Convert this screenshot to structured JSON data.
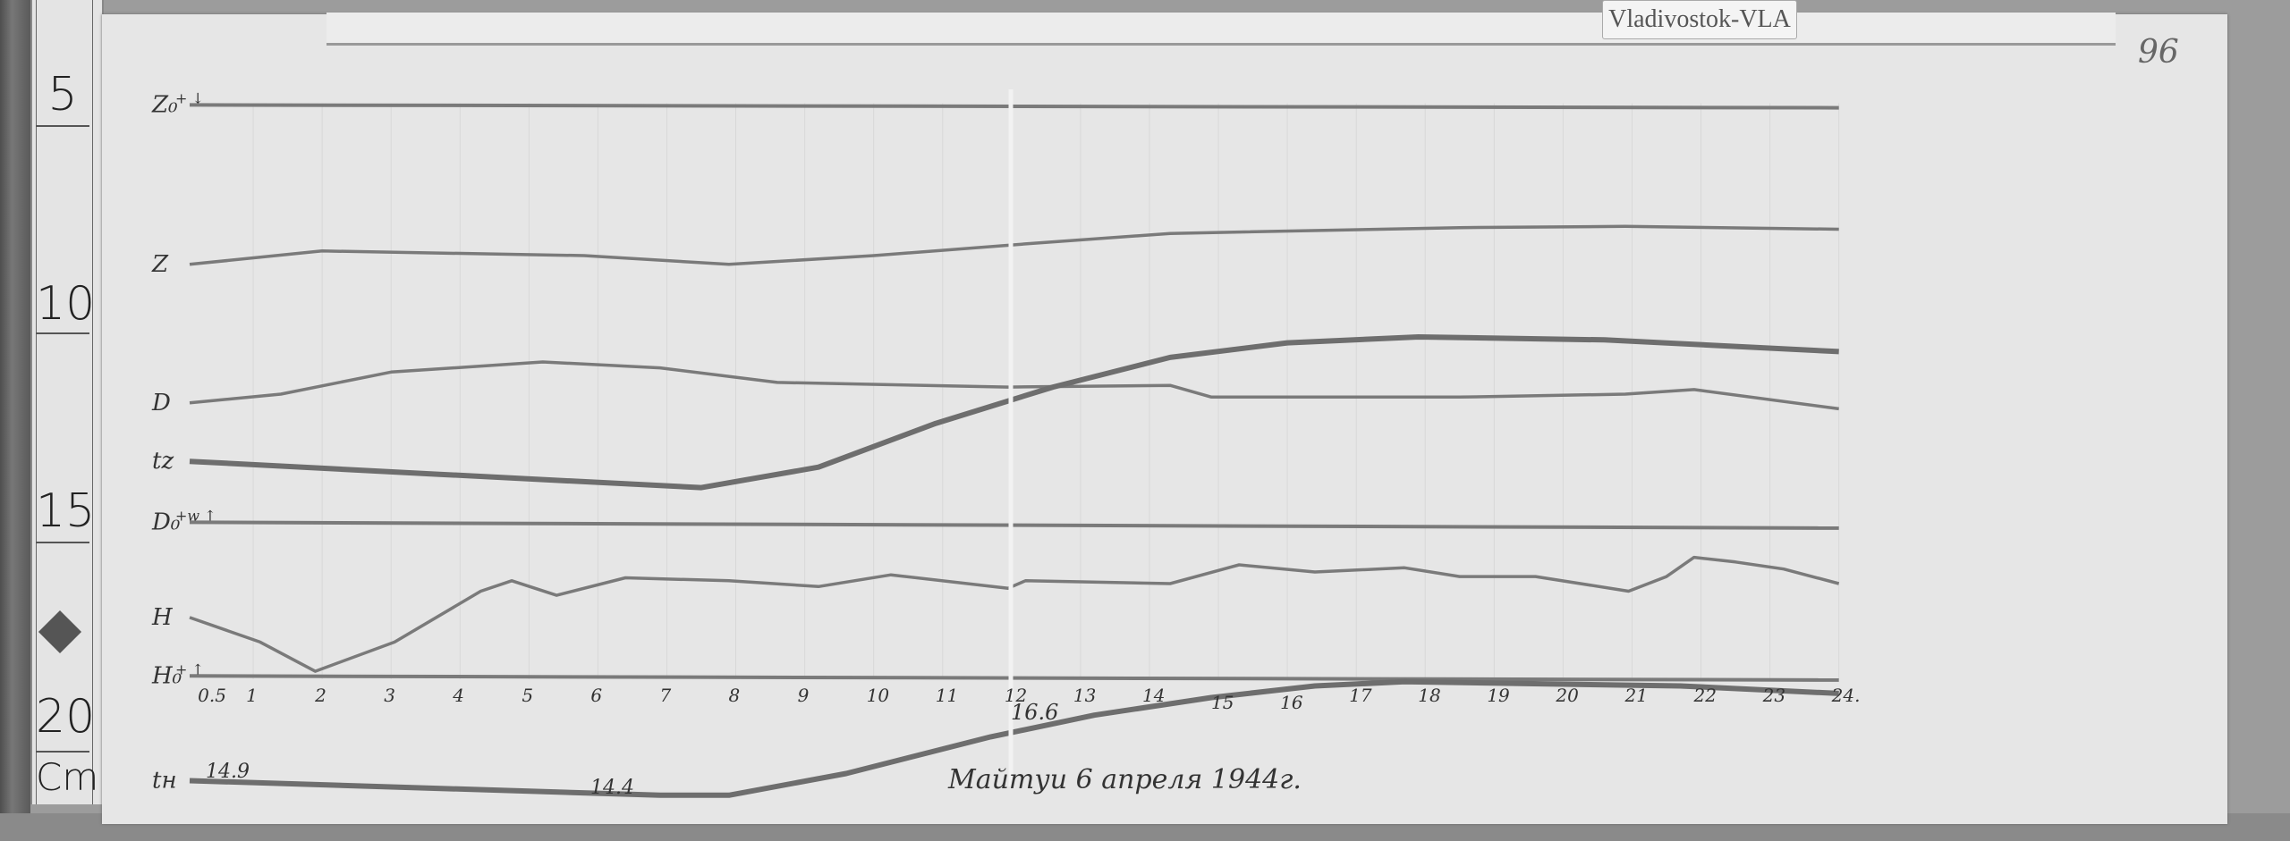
{
  "tag_label": "Vladivostok-VLA",
  "page_number": "96",
  "ruler": {
    "marks": [
      "5",
      "10",
      "15",
      "20"
    ],
    "unit": "Cm"
  },
  "caption": "Майтуи 6 апреля 1944г.",
  "colors": {
    "paper": "#e6e6e6",
    "trace": "#777777",
    "ink": "#333333"
  },
  "chart_data": {
    "type": "line",
    "title": "",
    "xlabel": "",
    "ylabel": "",
    "x_unit_note": "hours",
    "y_scale": "ruler Cm",
    "xlim": [
      0,
      24
    ],
    "ylim": [
      4,
      23
    ],
    "grid": true,
    "x_tick_labels": [
      "0.5",
      "1",
      "2",
      "3",
      "4",
      "5",
      "6",
      "7",
      "8",
      "9",
      "10",
      "11",
      "12",
      "13",
      "14",
      "15",
      "16",
      "17",
      "18",
      "19",
      "20",
      "21",
      "22",
      "23",
      "24."
    ],
    "series": [
      {
        "name": "Z₀",
        "label_extra": "+ ↓",
        "baseline": true,
        "points": [
          [
            0.1,
            5.24
          ],
          [
            24,
            5.31
          ]
        ]
      },
      {
        "name": "Z",
        "points": [
          [
            0.1,
            9.06
          ],
          [
            2.0,
            8.74
          ],
          [
            5.8,
            8.85
          ],
          [
            7.9,
            9.06
          ],
          [
            10.0,
            8.85
          ],
          [
            12.2,
            8.57
          ],
          [
            14.3,
            8.32
          ],
          [
            18.5,
            8.18
          ],
          [
            20.9,
            8.15
          ],
          [
            24,
            8.22
          ]
        ]
      },
      {
        "name": "D",
        "points": [
          [
            0.1,
            12.38
          ],
          [
            1.4,
            12.17
          ],
          [
            3.0,
            11.64
          ],
          [
            5.2,
            11.4
          ],
          [
            6.9,
            11.54
          ],
          [
            8.6,
            11.89
          ],
          [
            11.95,
            12.0
          ],
          [
            14.3,
            11.96
          ],
          [
            14.9,
            12.24
          ],
          [
            18.5,
            12.24
          ],
          [
            20.9,
            12.17
          ],
          [
            21.9,
            12.06
          ],
          [
            24,
            12.52
          ]
        ]
      },
      {
        "name": "tz",
        "thick": true,
        "points": [
          [
            0.1,
            13.78
          ],
          [
            3.7,
            14.09
          ],
          [
            7.5,
            14.41
          ],
          [
            9.2,
            13.92
          ],
          [
            10.9,
            12.87
          ],
          [
            12.6,
            12.0
          ],
          [
            14.3,
            11.29
          ],
          [
            16.0,
            10.94
          ],
          [
            17.9,
            10.8
          ],
          [
            20.6,
            10.87
          ],
          [
            24,
            11.15
          ]
        ]
      },
      {
        "name": "D₀",
        "label_extra": "+w ↑",
        "baseline": true,
        "points": [
          [
            0.1,
            15.24
          ],
          [
            24,
            15.38
          ]
        ]
      },
      {
        "name": "H",
        "points": [
          [
            0.1,
            17.52
          ],
          [
            1.1,
            18.11
          ],
          [
            1.9,
            18.81
          ],
          [
            3.05,
            18.11
          ],
          [
            4.3,
            16.89
          ],
          [
            4.75,
            16.64
          ],
          [
            5.4,
            16.99
          ],
          [
            6.4,
            16.57
          ],
          [
            7.9,
            16.64
          ],
          [
            9.2,
            16.78
          ],
          [
            10.25,
            16.5
          ],
          [
            11.95,
            16.82
          ],
          [
            12.2,
            16.64
          ],
          [
            14.3,
            16.71
          ],
          [
            15.3,
            16.26
          ],
          [
            16.4,
            16.43
          ],
          [
            17.7,
            16.33
          ],
          [
            18.5,
            16.54
          ],
          [
            19.6,
            16.54
          ],
          [
            20.95,
            16.89
          ],
          [
            21.5,
            16.54
          ],
          [
            21.9,
            16.08
          ],
          [
            22.5,
            16.19
          ],
          [
            23.2,
            16.36
          ],
          [
            24,
            16.71
          ]
        ]
      },
      {
        "name": "H₀",
        "label_extra": "+ ↑",
        "baseline": true,
        "points": [
          [
            0.1,
            18.92
          ],
          [
            24,
            19.02
          ]
        ]
      },
      {
        "name": "tн",
        "thick": true,
        "points": [
          [
            0.1,
            21.43
          ],
          [
            6.9,
            21.78
          ],
          [
            7.9,
            21.78
          ],
          [
            9.6,
            21.26
          ],
          [
            11.7,
            20.38
          ],
          [
            13.2,
            19.86
          ],
          [
            14.9,
            19.44
          ],
          [
            16.4,
            19.16
          ],
          [
            17.7,
            19.06
          ],
          [
            21.7,
            19.16
          ],
          [
            24,
            19.34
          ]
        ]
      }
    ],
    "annotations": [
      "14.9",
      "14.4",
      "16.6"
    ]
  }
}
